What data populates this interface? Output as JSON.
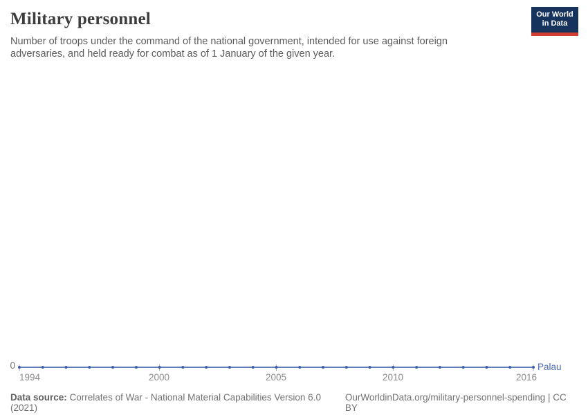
{
  "header": {
    "title": "Military personnel",
    "subtitle_line1": "Number of troops under the command of the national government, intended for use against foreign",
    "subtitle_line2": "adversaries, and held ready for combat as of 1 January of the given year."
  },
  "logo": {
    "line1": "Our World",
    "line2": "in Data",
    "bg_color": "#16335e",
    "bar_color": "#d23d33"
  },
  "chart_data": {
    "type": "line",
    "title": "Military personnel",
    "xlabel": "",
    "ylabel": "",
    "x_range": [
      1994,
      2016
    ],
    "y_zero_label": "0",
    "grid": false,
    "legend_position": "end-of-line",
    "x_ticks": [
      1994,
      2000,
      2005,
      2010,
      2016
    ],
    "series": [
      {
        "name": "Palau",
        "color": "#4c6bb0",
        "dot_color": "#3e5fa9",
        "x": [
          1994,
          1995,
          1996,
          1997,
          1998,
          1999,
          2000,
          2001,
          2002,
          2003,
          2004,
          2005,
          2006,
          2007,
          2008,
          2009,
          2010,
          2011,
          2012,
          2013,
          2014,
          2015,
          2016
        ],
        "values": [
          0,
          0,
          0,
          0,
          0,
          0,
          0,
          0,
          0,
          0,
          0,
          0,
          0,
          0,
          0,
          0,
          0,
          0,
          0,
          0,
          0,
          0,
          0
        ]
      }
    ]
  },
  "footer": {
    "datasource_label": "Data source:",
    "datasource_text": "Correlates of War - National Material Capabilities Version 6.0 (2021)",
    "link_text": "OurWorldinData.org/military-personnel-spending | CC BY"
  }
}
